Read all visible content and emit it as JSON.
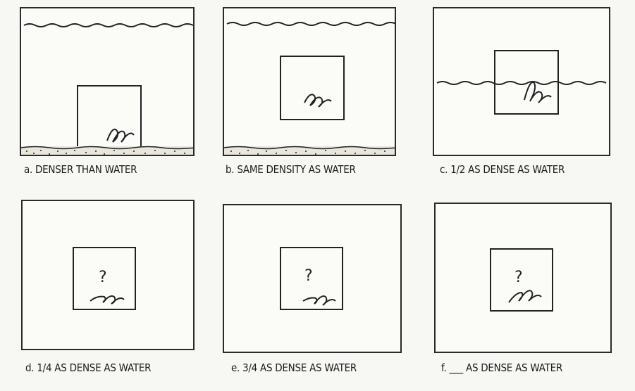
{
  "panels": [
    {
      "id": "a",
      "caption": "a. DENSER THAN WATER"
    },
    {
      "id": "b",
      "caption": "b. SAME DENSITY AS WATER"
    },
    {
      "id": "c",
      "caption": "c. 1/2 AS DENSE AS WATER"
    },
    {
      "id": "d",
      "caption": "d. 1/4 AS DENSE AS WATER",
      "mark": "?"
    },
    {
      "id": "e",
      "caption": "e. 3/4 AS DENSE AS WATER",
      "mark": "?"
    },
    {
      "id": "f",
      "caption": "f. ___ AS DENSE AS WATER",
      "mark": "?"
    }
  ]
}
